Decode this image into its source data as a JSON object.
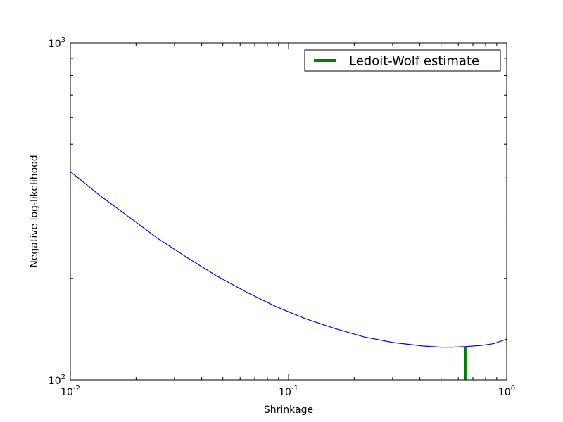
{
  "chart_data": {
    "type": "line",
    "title": "",
    "xlabel": "Shrinkage",
    "ylabel": "Negative log-likelihood",
    "xscale": "log",
    "yscale": "log",
    "xlim": [
      0.01,
      1
    ],
    "ylim": [
      100,
      1000
    ],
    "grid": false,
    "legend_placement": "top-right",
    "x_ticks": [
      {
        "value": 0.01,
        "base": "10",
        "exp": "-2"
      },
      {
        "value": 0.1,
        "base": "10",
        "exp": "-1"
      },
      {
        "value": 1,
        "base": "10",
        "exp": "0"
      }
    ],
    "y_ticks": [
      {
        "value": 100,
        "base": "10",
        "exp": "2"
      },
      {
        "value": 1000,
        "base": "10",
        "exp": "3"
      }
    ],
    "series": [
      {
        "name": "",
        "color": "#0000ff",
        "x": [
          0.01,
          0.0136,
          0.0186,
          0.0253,
          0.0345,
          0.0471,
          0.0642,
          0.0875,
          0.119,
          0.163,
          0.222,
          0.302,
          0.412,
          0.5,
          0.562,
          0.65,
          0.766,
          0.87,
          1.0
        ],
        "y": [
          415,
          353,
          304,
          262,
          230,
          203,
          182,
          165,
          152,
          142,
          134,
          129,
          126,
          125,
          125,
          125.5,
          126.5,
          128,
          132
        ]
      }
    ],
    "vlines": [
      {
        "name": "Ledoit-Wolf estimate",
        "color": "#008000",
        "x": 0.646,
        "y": [
          100,
          125.3
        ]
      }
    ],
    "legend": [
      {
        "label": "Ledoit-Wolf estimate",
        "color": "#008000"
      }
    ]
  }
}
